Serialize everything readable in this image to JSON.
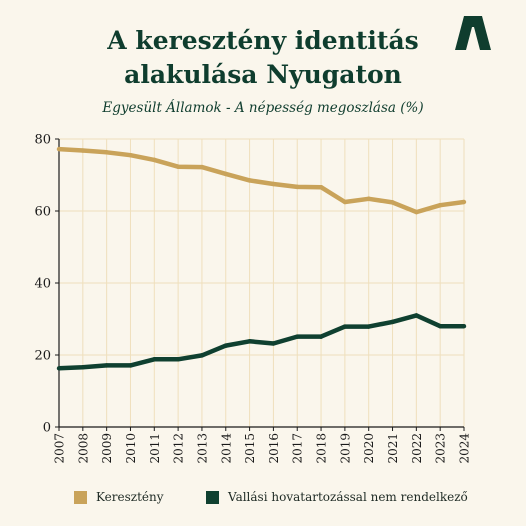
{
  "header": {
    "title_line1": "A keresztény identitás",
    "title_line2": "alakulása Nyugaton",
    "subtitle": "Egyesült Államok - A népesség megoszlása (%)"
  },
  "logo": {
    "icon": "stylized-A-logo-icon",
    "color": "#0f3d2e"
  },
  "colors": {
    "background": "#faf6ec",
    "grid": "#efdfbc",
    "axis": "#1a1a1a"
  },
  "chart_data": {
    "type": "line",
    "x": [
      2007,
      2008,
      2009,
      2010,
      2011,
      2012,
      2013,
      2014,
      2015,
      2016,
      2017,
      2018,
      2019,
      2020,
      2021,
      2022,
      2023,
      2024
    ],
    "series": [
      {
        "name": "Keresztény",
        "color": "#c9a35a",
        "values": [
          77.2,
          76.8,
          76.3,
          75.5,
          74.2,
          72.3,
          72.2,
          70.3,
          68.5,
          67.5,
          66.7,
          66.6,
          62.5,
          63.4,
          62.4,
          59.7,
          61.6,
          62.5
        ]
      },
      {
        "name": "Vallási hovatartozással nem rendelkező",
        "color": "#0f4030",
        "values": [
          16.3,
          16.6,
          17.1,
          17.1,
          18.8,
          18.8,
          19.9,
          22.6,
          23.8,
          23.2,
          25.1,
          25.1,
          27.9,
          27.9,
          29.2,
          31.0,
          28.0,
          28.0
        ]
      }
    ],
    "xlim": [
      2007,
      2024
    ],
    "ylim": [
      0,
      80
    ],
    "yticks": [
      0,
      20,
      40,
      60,
      80
    ],
    "grid": true,
    "legend_position": "bottom"
  }
}
